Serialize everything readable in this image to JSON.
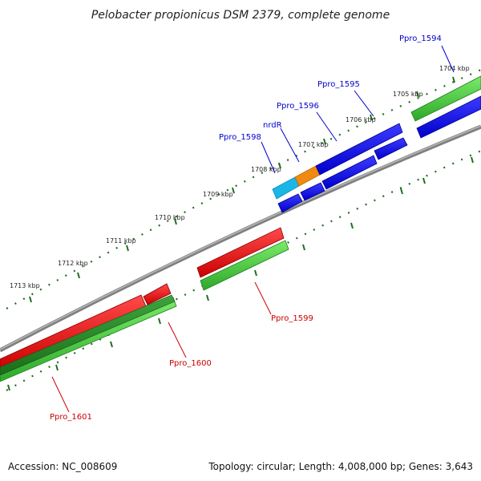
{
  "title": "Pelobacter propionicus DSM 2379, complete genome",
  "footer": {
    "accession": "Accession: NC_008609",
    "topology": "Topology: circular; Length: 4,008,000 bp; Genes: 3,643"
  },
  "colors": {
    "forward_label": "#0000cc",
    "reverse_label": "#cc0000",
    "backbone": "#888888",
    "tick": "#1f6e1f"
  },
  "scale_labels": [
    "1704 kbp",
    "1705 kbp",
    "1706 kbp",
    "1707 kbp",
    "1708 kbp",
    "1709 kbp",
    "1710 kbp",
    "1711 kbp",
    "1712 kbp",
    "1713 kbp"
  ],
  "forward_genes": [
    "Ppro_1594",
    "Ppro_1595",
    "Ppro_1596",
    "nrdR",
    "Ppro_1598"
  ],
  "reverse_genes": [
    "Ppro_1599",
    "Ppro_1600",
    "Ppro_1601"
  ]
}
